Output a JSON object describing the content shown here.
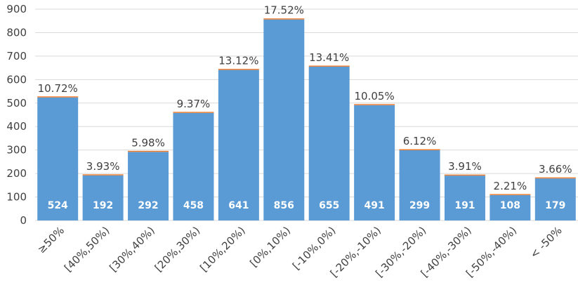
{
  "chart_data": {
    "type": "bar",
    "categories": [
      "≥50%",
      "[40%,50%)",
      "[30%,40%)",
      "[20%,30%)",
      "[10%,20%)",
      "[0%,10%)",
      "[-10%,0%)",
      "[-20%,-10%)",
      "[-30%,-20%)",
      "[-40%,-30%)",
      "[-50%,-40%)",
      "< -50%"
    ],
    "values": [
      524,
      192,
      292,
      458,
      641,
      856,
      655,
      491,
      299,
      191,
      108,
      179
    ],
    "percent_labels": [
      "10.72%",
      "3.93%",
      "5.98%",
      "9.37%",
      "13.12%",
      "17.52%",
      "13.41%",
      "10.05%",
      "6.12%",
      "3.91%",
      "2.21%",
      "3.66%"
    ],
    "ylim": [
      0,
      900
    ],
    "yticks": [
      0,
      100,
      200,
      300,
      400,
      500,
      600,
      700,
      800,
      900
    ],
    "grid": true,
    "legend": "none",
    "title": "",
    "xlabel": "",
    "ylabel": "",
    "colors": {
      "bar": "#5b9bd5",
      "bar_cap": "#ed7d31",
      "grid": "#d9d9d9",
      "text": "#404040"
    }
  }
}
